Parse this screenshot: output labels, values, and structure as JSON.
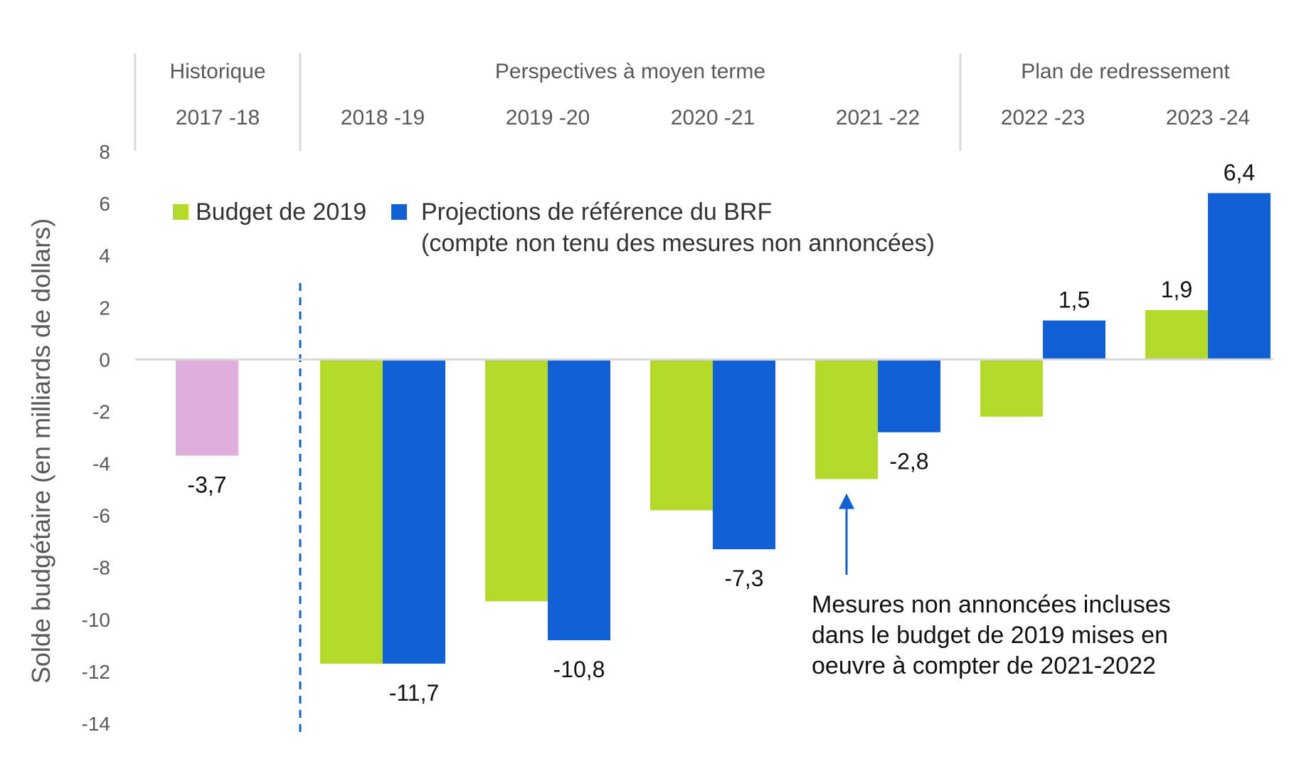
{
  "chart_data": {
    "type": "bar",
    "ylabel": "Solde budgétaire (en milliards de dollars)",
    "ylim": [
      -14,
      8
    ],
    "yticks": [
      8,
      6,
      4,
      2,
      0,
      -2,
      -4,
      -6,
      -8,
      -10,
      -12,
      -14
    ],
    "groups": [
      {
        "label": "Historique",
        "start": 0,
        "end": 0
      },
      {
        "label": "Perspectives à moyen terme",
        "start": 1,
        "end": 4
      },
      {
        "label": "Plan de redressement",
        "start": 5,
        "end": 6
      }
    ],
    "categories": [
      "2017 -18",
      "2018 -19",
      "2019 -20",
      "2020 -21",
      "2021 -22",
      "2022 -23",
      "2023 -24"
    ],
    "historical": {
      "name": "",
      "values": [
        -3.7,
        null,
        null,
        null,
        null,
        null,
        null
      ],
      "labels": [
        "-3,7",
        "",
        "",
        "",
        "",
        "",
        ""
      ],
      "color": "#E0AEDD"
    },
    "series": [
      {
        "name": "Budget de 2019",
        "color": "#B3D92B",
        "values": [
          null,
          -11.7,
          -9.3,
          -5.8,
          -4.6,
          -2.2,
          1.9
        ],
        "labels": [
          "",
          "",
          "",
          "",
          "",
          "",
          "1,9"
        ]
      },
      {
        "name": "Projections de référence du BRF",
        "name_line2": "(compte non tenu des mesures non annoncées)",
        "color": "#1160D6",
        "values": [
          null,
          -11.7,
          -10.8,
          -7.3,
          -2.8,
          1.5,
          6.4
        ],
        "labels": [
          "",
          "-11,7",
          "-10,8",
          "-7,3",
          "-2,8",
          "1,5",
          "6,4"
        ]
      }
    ],
    "annotation": {
      "lines": [
        "Mesures non annoncées incluses",
        "dans le budget de 2019 mises en",
        "oeuvre à compter de 2021-2022"
      ],
      "category_index": 4,
      "color": "#1160D6"
    },
    "divider_color": "#1160D6",
    "axis_color": "#D9D9D9"
  }
}
